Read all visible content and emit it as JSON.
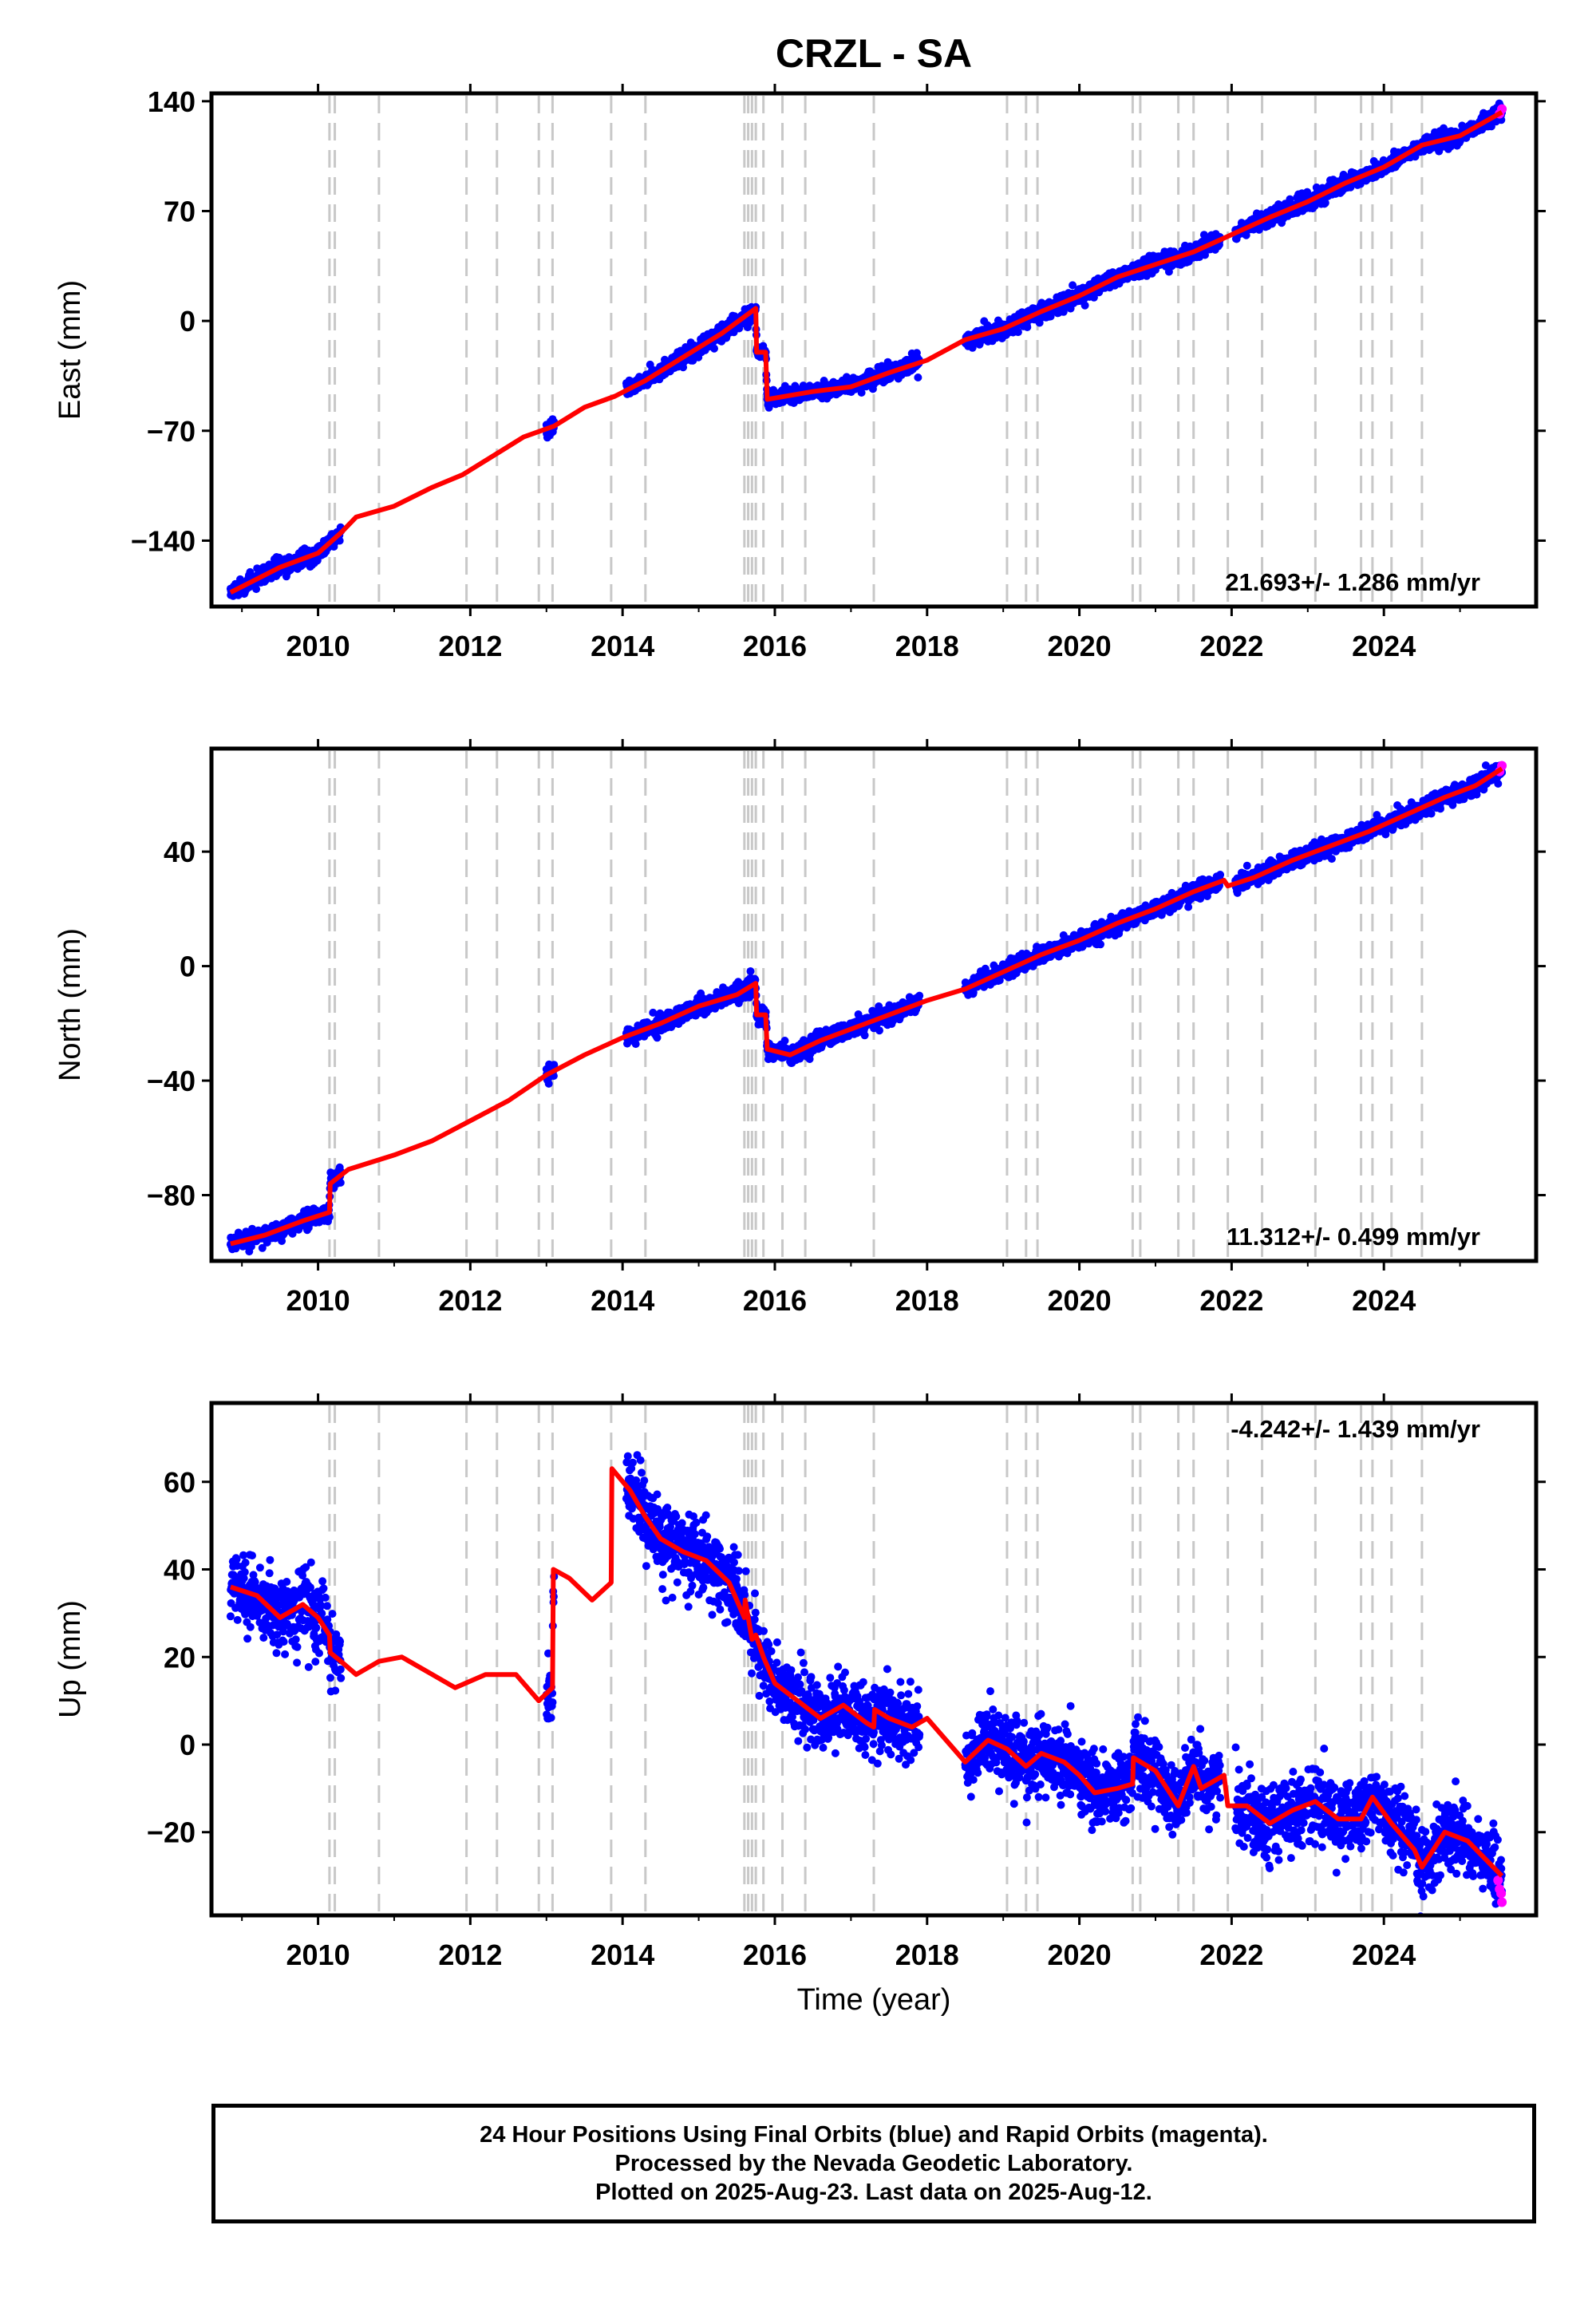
{
  "title": "CRZL - SA",
  "xlabel": "Time (year)",
  "xticks": [
    "2010",
    "2012",
    "2014",
    "2016",
    "2018",
    "2020",
    "2022",
    "2024"
  ],
  "caption": {
    "line1": "24 Hour Positions Using Final Orbits (blue) and Rapid Orbits (magenta).",
    "line2": "Processed by the Nevada Geodetic Laboratory.",
    "line3": "Plotted on 2025-Aug-23. Last data on 2025-Aug-12."
  },
  "colors": {
    "final": "#0000ff",
    "rapid": "#ff00ff",
    "model": "#ff0000",
    "steps": "#c8c8c8"
  },
  "chart_data": [
    {
      "type": "scatter",
      "ylabel": "East (mm)",
      "rate_label": "21.693+/- 1.286 mm/yr",
      "xlim": [
        2008.6,
        2026.0
      ],
      "ylim": [
        -182,
        145
      ],
      "yticks": [
        140,
        70,
        0,
        -70,
        -140
      ],
      "ytick_labels": [
        "140",
        "70",
        "0",
        "−70",
        "−140"
      ],
      "grid": false,
      "step_epochs": [
        2010.15,
        2010.22,
        2010.8,
        2011.95,
        2012.35,
        2012.9,
        2013.08,
        2013.85,
        2014.3,
        2015.6,
        2015.65,
        2015.7,
        2015.75,
        2015.85,
        2016.1,
        2016.4,
        2017.3,
        2019.05,
        2019.3,
        2019.45,
        2020.7,
        2020.8,
        2021.3,
        2021.5,
        2021.95,
        2022.4,
        2023.1,
        2023.7,
        2023.85,
        2024.1,
        2024.5
      ],
      "model": {
        "x": [
          2008.85,
          2009.5,
          2010.0,
          2010.3,
          2010.5,
          2011.0,
          2011.5,
          2011.9,
          2012.3,
          2012.7,
          2013.1,
          2013.5,
          2013.9,
          2014.3,
          2014.9,
          2015.3,
          2015.75,
          2015.76,
          2015.88,
          2015.9,
          2016.5,
          2017.0,
          2017.5,
          2018.0,
          2018.5,
          2019.0,
          2019.5,
          2020.0,
          2020.5,
          2021.0,
          2021.5,
          2022.0,
          2022.5,
          2023.0,
          2023.5,
          2024.0,
          2024.5,
          2025.0,
          2025.55
        ],
        "y": [
          -173,
          -157,
          -148,
          -135,
          -125,
          -118,
          -106,
          -98,
          -86,
          -74,
          -67,
          -55,
          -48,
          -38,
          -20,
          -8,
          8,
          -20,
          -20,
          -50,
          -45,
          -42,
          -33,
          -25,
          -12,
          -5,
          6,
          16,
          28,
          36,
          44,
          55,
          66,
          76,
          88,
          98,
          112,
          118,
          133
        ]
      },
      "data_segments": [
        [
          2008.85,
          2010.3
        ],
        [
          2013.0,
          2013.1
        ],
        [
          2014.05,
          2015.9
        ],
        [
          2015.9,
          2016.35
        ],
        [
          2016.35,
          2017.9
        ],
        [
          2018.5,
          2021.85
        ],
        [
          2022.05,
          2025.55
        ]
      ],
      "scatter_sd": 2.5,
      "rapid": {
        "x": [
          2025.52,
          2025.55
        ],
        "y": [
          132,
          135
        ]
      }
    },
    {
      "type": "scatter",
      "ylabel": "North (mm)",
      "rate_label": "11.312+/- 0.499 mm/yr",
      "xlim": [
        2008.6,
        2026.0
      ],
      "ylim": [
        -103,
        76
      ],
      "yticks": [
        40,
        0,
        -40,
        -80
      ],
      "ytick_labels": [
        "40",
        "0",
        "−40",
        "−80"
      ],
      "grid": false,
      "step_epochs": [
        2010.15,
        2010.22,
        2010.8,
        2011.95,
        2012.35,
        2012.9,
        2013.08,
        2013.85,
        2014.3,
        2015.6,
        2015.65,
        2015.7,
        2015.75,
        2015.85,
        2016.1,
        2016.4,
        2017.3,
        2019.05,
        2019.3,
        2019.45,
        2020.7,
        2020.8,
        2021.3,
        2021.5,
        2021.95,
        2022.4,
        2023.1,
        2023.7,
        2023.85,
        2024.1,
        2024.5
      ],
      "model": {
        "x": [
          2008.85,
          2009.3,
          2009.8,
          2010.15,
          2010.16,
          2010.4,
          2011.0,
          2011.5,
          2012.0,
          2012.5,
          2013.0,
          2013.5,
          2014.0,
          2014.5,
          2015.0,
          2015.5,
          2015.75,
          2015.76,
          2015.88,
          2015.9,
          2016.2,
          2016.6,
          2017.0,
          2017.5,
          2018.0,
          2018.5,
          2019.0,
          2019.5,
          2020.0,
          2020.5,
          2021.0,
          2021.5,
          2021.9,
          2021.95,
          2022.3,
          2022.8,
          2023.3,
          2023.8,
          2024.3,
          2024.8,
          2025.2,
          2025.55
        ],
        "y": [
          -97,
          -94,
          -89,
          -86,
          -76,
          -71,
          -66,
          -61,
          -54,
          -47,
          -38,
          -31,
          -25,
          -20,
          -14,
          -10,
          -6,
          -17,
          -17,
          -29,
          -31,
          -26,
          -22,
          -17,
          -12,
          -8,
          -2,
          4,
          9,
          15,
          20,
          26,
          30,
          28,
          31,
          37,
          42,
          47,
          53,
          59,
          63,
          69
        ]
      },
      "data_segments": [
        [
          2008.85,
          2010.3
        ],
        [
          2013.0,
          2013.1
        ],
        [
          2014.05,
          2015.9
        ],
        [
          2015.9,
          2016.35
        ],
        [
          2016.35,
          2017.9
        ],
        [
          2018.5,
          2021.85
        ],
        [
          2022.05,
          2025.55
        ]
      ],
      "scatter_sd": 1.4,
      "rapid": {
        "x": [
          2025.52,
          2025.55
        ],
        "y": [
          68,
          70
        ]
      }
    },
    {
      "type": "scatter",
      "ylabel": "Up (mm)",
      "rate_label": "-4.242+/- 1.439 mm/yr",
      "xlim": [
        2008.6,
        2026.0
      ],
      "ylim": [
        -39,
        78
      ],
      "yticks": [
        60,
        40,
        20,
        0,
        -20
      ],
      "ytick_labels": [
        "60",
        "40",
        "20",
        "0",
        "−20"
      ],
      "grid": false,
      "step_epochs": [
        2010.15,
        2010.22,
        2010.8,
        2011.95,
        2012.35,
        2012.9,
        2013.08,
        2013.85,
        2014.3,
        2015.6,
        2015.65,
        2015.7,
        2015.75,
        2015.85,
        2016.1,
        2016.4,
        2017.3,
        2019.05,
        2019.3,
        2019.45,
        2020.7,
        2020.8,
        2021.3,
        2021.5,
        2021.95,
        2022.4,
        2023.1,
        2023.7,
        2023.85,
        2024.1,
        2024.5
      ],
      "model": {
        "x": [
          2008.85,
          2009.2,
          2009.5,
          2009.8,
          2010.0,
          2010.15,
          2010.16,
          2010.3,
          2010.5,
          2010.8,
          2011.1,
          2011.5,
          2011.8,
          2012.2,
          2012.6,
          2012.9,
          2013.08,
          2013.09,
          2013.3,
          2013.6,
          2013.85,
          2013.86,
          2014.1,
          2014.3,
          2014.5,
          2014.8,
          2015.1,
          2015.4,
          2015.6,
          2015.61,
          2015.7,
          2015.75,
          2015.85,
          2016.0,
          2016.3,
          2016.6,
          2016.9,
          2017.2,
          2017.3,
          2017.31,
          2017.5,
          2017.8,
          2018.0,
          2018.5,
          2018.8,
          2019.05,
          2019.3,
          2019.5,
          2019.8,
          2020.0,
          2020.2,
          2020.5,
          2020.7,
          2020.71,
          2021.0,
          2021.3,
          2021.5,
          2021.6,
          2021.9,
          2021.95,
          2022.2,
          2022.5,
          2022.8,
          2023.1,
          2023.4,
          2023.7,
          2023.85,
          2024.1,
          2024.4,
          2024.5,
          2024.8,
          2025.1,
          2025.55
        ],
        "y": [
          36,
          34,
          29,
          32,
          29,
          25,
          21,
          19,
          16,
          19,
          20,
          16,
          13,
          16,
          16,
          10,
          13,
          40,
          38,
          33,
          37,
          63,
          58,
          52,
          47,
          44,
          42,
          37,
          29,
          33,
          24,
          25,
          20,
          14,
          10,
          6,
          9,
          5,
          4,
          8,
          6,
          4,
          6,
          -4,
          1,
          -1,
          -5,
          -2,
          -4,
          -7,
          -11,
          -10,
          -9,
          -3,
          -6,
          -14,
          -5,
          -10,
          -7,
          -14,
          -14,
          -18,
          -15,
          -13,
          -17,
          -17,
          -12,
          -18,
          -24,
          -28,
          -20,
          -22,
          -30
        ]
      },
      "data_segments": [
        [
          2008.85,
          2010.3
        ],
        [
          2013.0,
          2013.1
        ],
        [
          2014.05,
          2015.9
        ],
        [
          2015.9,
          2016.35
        ],
        [
          2016.35,
          2017.9
        ],
        [
          2018.5,
          2021.85
        ],
        [
          2022.05,
          2025.55
        ]
      ],
      "scatter_sd": 4.0,
      "rapid": {
        "x": [
          2025.5,
          2025.52,
          2025.54,
          2025.55
        ],
        "y": [
          -31,
          -33,
          -34,
          -36
        ]
      }
    }
  ]
}
